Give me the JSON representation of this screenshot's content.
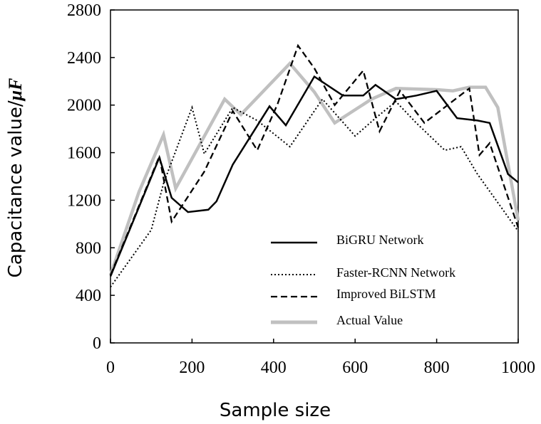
{
  "chart_data": {
    "type": "line",
    "title": "",
    "xlabel": "Sample size",
    "ylabel_prefix": "Capacitance value/",
    "ylabel_unit": "μF",
    "xlim": [
      0,
      1000
    ],
    "ylim": [
      0,
      2800
    ],
    "xticks": [
      0,
      200,
      400,
      600,
      800,
      1000
    ],
    "yticks": [
      0,
      400,
      800,
      1200,
      1600,
      2000,
      2400,
      2800
    ],
    "legend_position": "lower-right",
    "series": [
      {
        "name": "BiGRU Network",
        "style": "solid",
        "color": "#000000",
        "x": [
          0,
          120,
          150,
          190,
          240,
          260,
          300,
          390,
          430,
          500,
          570,
          620,
          650,
          700,
          750,
          800,
          850,
          900,
          930,
          975,
          1000
        ],
        "y": [
          560,
          1560,
          1220,
          1100,
          1120,
          1190,
          1500,
          1990,
          1830,
          2240,
          2080,
          2080,
          2170,
          2050,
          2080,
          2120,
          1890,
          1870,
          1850,
          1420,
          1350
        ]
      },
      {
        "name": "Faster-RCNN Network",
        "style": "dotted",
        "color": "#000000",
        "x": [
          0,
          100,
          130,
          200,
          230,
          300,
          360,
          440,
          520,
          600,
          650,
          700,
          750,
          820,
          860,
          900,
          1000
        ],
        "y": [
          470,
          950,
          1340,
          1980,
          1590,
          1980,
          1870,
          1650,
          2050,
          1740,
          1890,
          2030,
          1850,
          1620,
          1650,
          1420,
          940
        ]
      },
      {
        "name": "Improved BiLSTM",
        "style": "dashed",
        "color": "#000000",
        "x": [
          0,
          120,
          150,
          230,
          300,
          360,
          410,
          460,
          500,
          550,
          620,
          660,
          710,
          770,
          880,
          905,
          930,
          1000
        ],
        "y": [
          570,
          1570,
          1020,
          1440,
          1950,
          1620,
          2010,
          2500,
          2310,
          2000,
          2290,
          1780,
          2120,
          1850,
          2140,
          1580,
          1680,
          970
        ]
      },
      {
        "name": "Actual Value",
        "style": "solid-thick",
        "color": "#c0c0c0",
        "x": [
          0,
          70,
          130,
          160,
          280,
          320,
          440,
          500,
          550,
          640,
          700,
          800,
          840,
          880,
          920,
          950,
          1000
        ],
        "y": [
          570,
          1270,
          1750,
          1300,
          2050,
          1920,
          2350,
          2110,
          1850,
          2050,
          2140,
          2130,
          2120,
          2150,
          2150,
          1980,
          1030
        ]
      }
    ]
  }
}
